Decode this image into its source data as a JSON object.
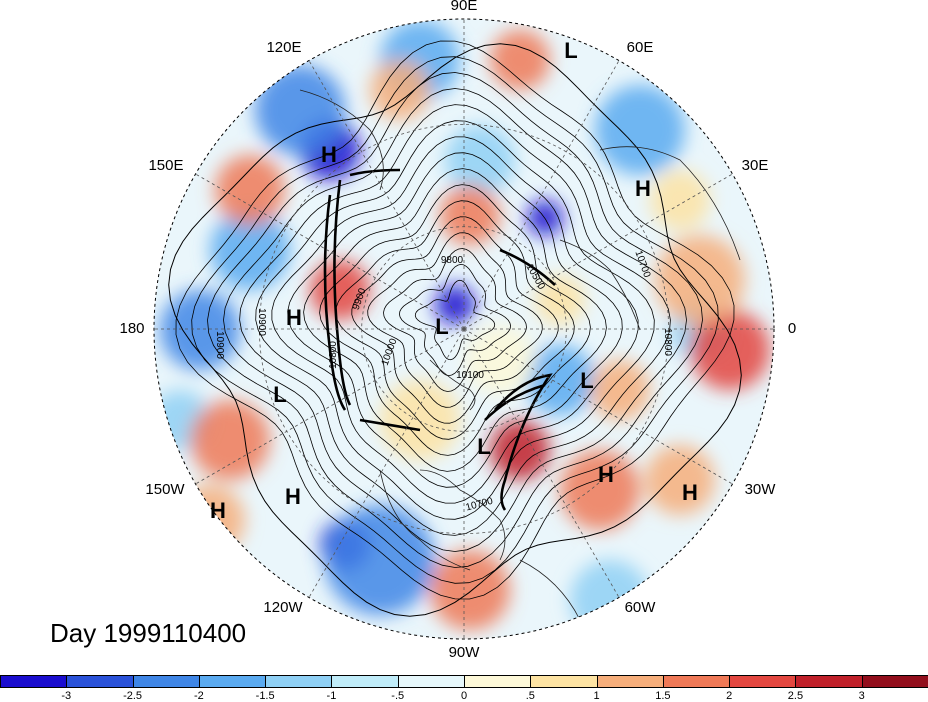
{
  "title": "Day 1999110400",
  "longitude_labels": [
    {
      "text": "90E"
    },
    {
      "text": "60E"
    },
    {
      "text": "30E"
    },
    {
      "text": "0"
    },
    {
      "text": "30W"
    },
    {
      "text": "60W"
    },
    {
      "text": "90W"
    },
    {
      "text": "120W"
    },
    {
      "text": "150W"
    },
    {
      "text": "180"
    },
    {
      "text": "150E"
    },
    {
      "text": "120E"
    }
  ],
  "pressure_centers": [
    "L",
    "H",
    "H",
    "H",
    "L",
    "L",
    "L",
    "L",
    "H",
    "H",
    "H",
    "H"
  ],
  "contour_labels": [
    "9800",
    "9900",
    "10000",
    "10100",
    "10500",
    "10700",
    "10800",
    "10800",
    "10900",
    "10900",
    "10700"
  ],
  "colorbar": {
    "ticks": [
      "-3",
      "-2.5",
      "-2",
      "-1.5",
      "-1",
      "-.5",
      "0",
      ".5",
      "1",
      "1.5",
      "2",
      "2.5",
      "3"
    ],
    "colors": [
      "#1a0dcf",
      "#2a52d9",
      "#3f86e6",
      "#5aaaf0",
      "#8fd0f5",
      "#c0ecf9",
      "#e6f7fb",
      "#fdf8d8",
      "#fde3a3",
      "#f6ae7b",
      "#ef7957",
      "#e34740",
      "#c0202a",
      "#920e1c"
    ]
  }
}
